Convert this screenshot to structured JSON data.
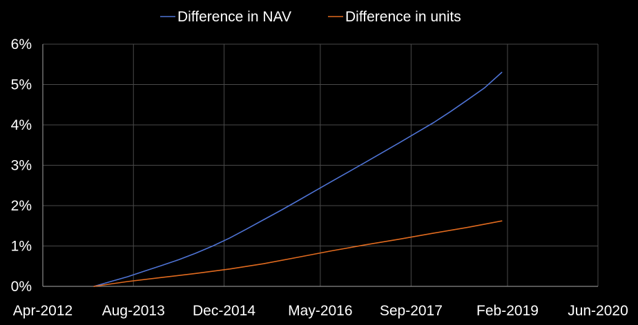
{
  "chart_data": {
    "type": "line",
    "x_axis_type": "date",
    "x_ticks": [
      "Apr-2012",
      "Aug-2013",
      "Dec-2014",
      "May-2016",
      "Sep-2017",
      "Feb-2019",
      "Jun-2020"
    ],
    "y_ticks": [
      "0%",
      "1%",
      "2%",
      "3%",
      "4%",
      "5%",
      "6%"
    ],
    "ylim": [
      0,
      6
    ],
    "y_unit": "%",
    "grid": true,
    "legend_position": "top",
    "series": [
      {
        "name": "Difference in NAV",
        "color": "#4f74d6",
        "points": [
          [
            "2013-01-01",
            0.0
          ],
          [
            "2013-04-01",
            0.12
          ],
          [
            "2013-07-01",
            0.24
          ],
          [
            "2013-10-01",
            0.38
          ],
          [
            "2014-01-01",
            0.52
          ],
          [
            "2014-04-01",
            0.66
          ],
          [
            "2014-07-01",
            0.82
          ],
          [
            "2014-10-01",
            1.0
          ],
          [
            "2015-01-01",
            1.2
          ],
          [
            "2015-04-01",
            1.42
          ],
          [
            "2015-07-01",
            1.65
          ],
          [
            "2015-10-01",
            1.88
          ],
          [
            "2016-01-01",
            2.12
          ],
          [
            "2016-04-01",
            2.36
          ],
          [
            "2016-07-01",
            2.6
          ],
          [
            "2016-10-01",
            2.84
          ],
          [
            "2017-01-01",
            3.08
          ],
          [
            "2017-04-01",
            3.32
          ],
          [
            "2017-07-01",
            3.56
          ],
          [
            "2017-10-01",
            3.81
          ],
          [
            "2018-01-01",
            4.06
          ],
          [
            "2018-04-01",
            4.33
          ],
          [
            "2018-07-01",
            4.62
          ],
          [
            "2018-10-01",
            4.92
          ],
          [
            "2019-01-01",
            5.3
          ]
        ]
      },
      {
        "name": "Difference in units",
        "color": "#e26b1f",
        "points": [
          [
            "2013-01-01",
            0.0
          ],
          [
            "2013-07-01",
            0.12
          ],
          [
            "2014-01-01",
            0.22
          ],
          [
            "2014-07-01",
            0.32
          ],
          [
            "2015-01-01",
            0.43
          ],
          [
            "2015-07-01",
            0.56
          ],
          [
            "2016-01-01",
            0.72
          ],
          [
            "2016-07-01",
            0.88
          ],
          [
            "2017-01-01",
            1.03
          ],
          [
            "2017-07-01",
            1.17
          ],
          [
            "2018-01-01",
            1.32
          ],
          [
            "2018-07-01",
            1.46
          ],
          [
            "2019-01-01",
            1.62
          ]
        ]
      }
    ]
  }
}
